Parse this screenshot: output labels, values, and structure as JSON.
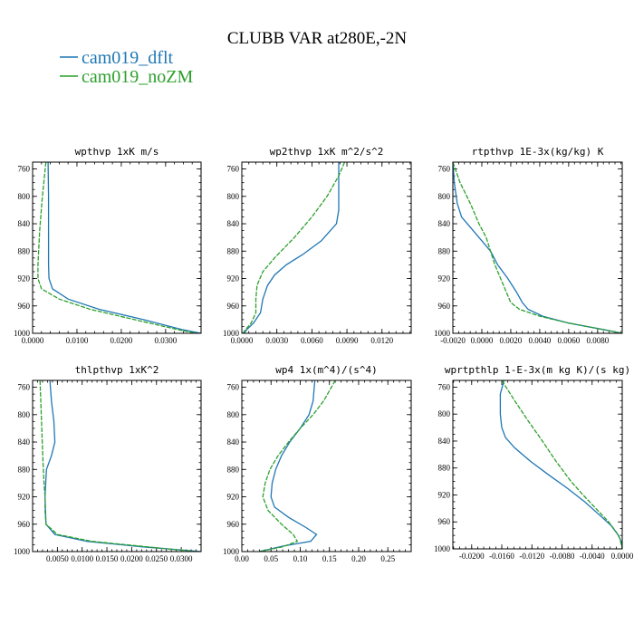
{
  "title": "CLUBB VAR at280E,-2N",
  "legend": [
    {
      "label": "cam019_dflt",
      "color": "#1f77b4"
    },
    {
      "label": "cam019_noZM",
      "color": "#2ca02c"
    }
  ],
  "chart_data": [
    {
      "type": "line",
      "title": "wpthvp  1xK m/s",
      "xlim": [
        0,
        0.038
      ],
      "ylim": [
        1000,
        750
      ],
      "xticks": [
        "0.0000",
        "0.0100",
        "0.0200",
        "0.0300"
      ],
      "xtick_values": [
        0,
        0.01,
        0.02,
        0.03
      ],
      "yticks": [
        "760",
        "800",
        "840",
        "880",
        "920",
        "960",
        "1000"
      ],
      "ytick_values": [
        760,
        800,
        840,
        880,
        920,
        960,
        1000
      ],
      "series": [
        {
          "name": "cam019_dflt",
          "y": [
            750,
            800,
            850,
            900,
            920,
            935,
            950,
            965,
            980,
            995,
            1000
          ],
          "x": [
            0.0035,
            0.0036,
            0.0036,
            0.0036,
            0.0037,
            0.0045,
            0.008,
            0.015,
            0.025,
            0.034,
            0.038
          ]
        },
        {
          "name": "cam019_noZM",
          "y": [
            750,
            800,
            850,
            900,
            920,
            935,
            950,
            965,
            980,
            995,
            1000
          ],
          "x": [
            0.003,
            0.0022,
            0.0016,
            0.0012,
            0.0012,
            0.002,
            0.006,
            0.013,
            0.023,
            0.033,
            0.037
          ]
        }
      ]
    },
    {
      "type": "line",
      "title": "wp2thvp  1xK m^2/s^2",
      "xlim": [
        0,
        0.0145
      ],
      "ylim": [
        1000,
        750
      ],
      "xticks": [
        "0.0000",
        "0.0030",
        "0.0060",
        "0.0090",
        "0.0120"
      ],
      "xtick_values": [
        0,
        0.003,
        0.006,
        0.009,
        0.012
      ],
      "yticks": [
        "760",
        "800",
        "840",
        "880",
        "920",
        "960",
        "1000"
      ],
      "ytick_values": [
        760,
        800,
        840,
        880,
        920,
        960,
        1000
      ],
      "series": [
        {
          "name": "cam019_dflt",
          "y": [
            750,
            770,
            800,
            820,
            840,
            865,
            885,
            900,
            915,
            930,
            950,
            970,
            985,
            995,
            1000
          ],
          "x": [
            0.0083,
            0.0083,
            0.0083,
            0.0083,
            0.0081,
            0.0068,
            0.0052,
            0.0038,
            0.0028,
            0.0022,
            0.0018,
            0.0016,
            0.001,
            0.0004,
            0.0002
          ]
        },
        {
          "name": "cam019_noZM",
          "y": [
            750,
            770,
            800,
            830,
            860,
            890,
            910,
            930,
            950,
            970,
            985,
            995,
            1000
          ],
          "x": [
            0.0088,
            0.0083,
            0.0073,
            0.006,
            0.0045,
            0.0028,
            0.0018,
            0.0013,
            0.0012,
            0.0012,
            0.0008,
            0.0003,
            0.0001
          ]
        }
      ]
    },
    {
      "type": "line",
      "title": "rtpthvp  1E-3x(kg/kg) K",
      "xlim": [
        -0.002,
        0.0097
      ],
      "ylim": [
        1000,
        750
      ],
      "xticks": [
        "-0.0020",
        "0.0000",
        "0.0020",
        "0.0040",
        "0.0060",
        "0.0080"
      ],
      "xtick_values": [
        -0.002,
        0,
        0.002,
        0.004,
        0.006,
        0.008
      ],
      "yticks": [
        "760",
        "800",
        "840",
        "880",
        "920",
        "960",
        "1000"
      ],
      "ytick_values": [
        760,
        800,
        840,
        880,
        920,
        960,
        1000
      ],
      "series": [
        {
          "name": "cam019_dflt",
          "y": [
            750,
            780,
            810,
            830,
            850,
            870,
            880,
            900,
            920,
            940,
            955,
            965,
            975,
            985,
            995,
            1000
          ],
          "x": [
            -0.002,
            -0.0019,
            -0.0017,
            -0.0014,
            -0.0006,
            0.0002,
            0.0006,
            0.0011,
            0.0018,
            0.0024,
            0.0028,
            0.0032,
            0.0042,
            0.006,
            0.0085,
            0.0097
          ]
        },
        {
          "name": "cam019_noZM",
          "y": [
            750,
            780,
            810,
            840,
            860,
            880,
            900,
            920,
            940,
            955,
            965,
            975,
            985,
            995,
            1000
          ],
          "x": [
            -0.002,
            -0.0015,
            -0.0008,
            -0.0002,
            0.0003,
            0.0006,
            0.0009,
            0.0013,
            0.0017,
            0.002,
            0.0026,
            0.004,
            0.006,
            0.0085,
            0.0097
          ]
        }
      ]
    },
    {
      "type": "line",
      "title": "thlpthvp  1xK^2",
      "xlim": [
        0,
        0.034
      ],
      "ylim": [
        1000,
        750
      ],
      "xticks": [
        "0.0050",
        "0.0100",
        "0.0150",
        "0.0200",
        "0.0250",
        "0.0300"
      ],
      "xtick_values": [
        0.005,
        0.01,
        0.015,
        0.02,
        0.025,
        0.03
      ],
      "yticks": [
        "760",
        "800",
        "840",
        "880",
        "920",
        "960",
        "1000"
      ],
      "ytick_values": [
        760,
        800,
        840,
        880,
        920,
        960,
        1000
      ],
      "series": [
        {
          "name": "cam019_dflt",
          "y": [
            750,
            780,
            810,
            840,
            860,
            880,
            920,
            960,
            975,
            985,
            993,
            1000
          ],
          "x": [
            0.0035,
            0.0038,
            0.0043,
            0.0045,
            0.0038,
            0.0028,
            0.0025,
            0.0027,
            0.0045,
            0.011,
            0.022,
            0.034
          ]
        },
        {
          "name": "cam019_noZM",
          "y": [
            750,
            790,
            830,
            870,
            900,
            920,
            940,
            960,
            975,
            985,
            993,
            1000
          ],
          "x": [
            0.0015,
            0.0017,
            0.0019,
            0.0021,
            0.0023,
            0.0025,
            0.0025,
            0.0027,
            0.005,
            0.012,
            0.023,
            0.033
          ]
        }
      ]
    },
    {
      "type": "line",
      "title": "wp4  1x(m^4)/(s^4)",
      "xlim": [
        0,
        0.29
      ],
      "ylim": [
        1000,
        750
      ],
      "xticks": [
        "0.00",
        "0.05",
        "0.10",
        "0.15",
        "0.20",
        "0.25"
      ],
      "xtick_values": [
        0,
        0.05,
        0.1,
        0.15,
        0.2,
        0.25
      ],
      "yticks": [
        "760",
        "800",
        "840",
        "880",
        "920",
        "960",
        "1000"
      ],
      "ytick_values": [
        760,
        800,
        840,
        880,
        920,
        960,
        1000
      ],
      "series": [
        {
          "name": "cam019_dflt",
          "y": [
            750,
            780,
            800,
            820,
            840,
            860,
            880,
            900,
            920,
            935,
            950,
            965,
            975,
            985,
            992,
            1000
          ],
          "x": [
            0.125,
            0.122,
            0.115,
            0.1,
            0.082,
            0.068,
            0.058,
            0.052,
            0.05,
            0.056,
            0.08,
            0.11,
            0.128,
            0.118,
            0.07,
            0.03
          ]
        },
        {
          "name": "cam019_noZM",
          "y": [
            750,
            780,
            800,
            820,
            840,
            860,
            880,
            900,
            920,
            940,
            960,
            975,
            985,
            993,
            1000
          ],
          "x": [
            0.16,
            0.14,
            0.122,
            0.1,
            0.08,
            0.062,
            0.048,
            0.04,
            0.036,
            0.045,
            0.068,
            0.088,
            0.095,
            0.07,
            0.03
          ]
        }
      ]
    },
    {
      "type": "line",
      "title": "wprtpthlp  1-E-3x(m kg K)/(s kg)",
      "xlim": [
        -0.0225,
        0
      ],
      "ylim": [
        1000,
        750
      ],
      "xticks": [
        "-0.0200",
        "-0.0160",
        "-0.0120",
        "-0.0080",
        "-0.0040",
        "0.0000"
      ],
      "xtick_values": [
        -0.02,
        -0.016,
        -0.012,
        -0.008,
        -0.004,
        0
      ],
      "yticks": [
        "760",
        "800",
        "840",
        "880",
        "920",
        "960",
        "1000"
      ],
      "ytick_values": [
        760,
        800,
        840,
        880,
        920,
        960,
        1000
      ],
      "series": [
        {
          "name": "cam019_dflt",
          "y": [
            750,
            770,
            800,
            820,
            835,
            850,
            870,
            890,
            910,
            930,
            950,
            965,
            980,
            990,
            1000
          ],
          "x": [
            -0.0157,
            -0.0162,
            -0.0162,
            -0.016,
            -0.0155,
            -0.0143,
            -0.0122,
            -0.0098,
            -0.0073,
            -0.005,
            -0.003,
            -0.0015,
            -0.0005,
            -0.0001,
            0
          ]
        },
        {
          "name": "cam019_noZM",
          "y": [
            750,
            780,
            810,
            840,
            870,
            900,
            920,
            940,
            960,
            975,
            985,
            995,
            1000
          ],
          "x": [
            -0.016,
            -0.0143,
            -0.0125,
            -0.0106,
            -0.0088,
            -0.0068,
            -0.0052,
            -0.0035,
            -0.0018,
            -0.0008,
            -0.0003,
            -0.0001,
            0
          ]
        }
      ]
    }
  ]
}
